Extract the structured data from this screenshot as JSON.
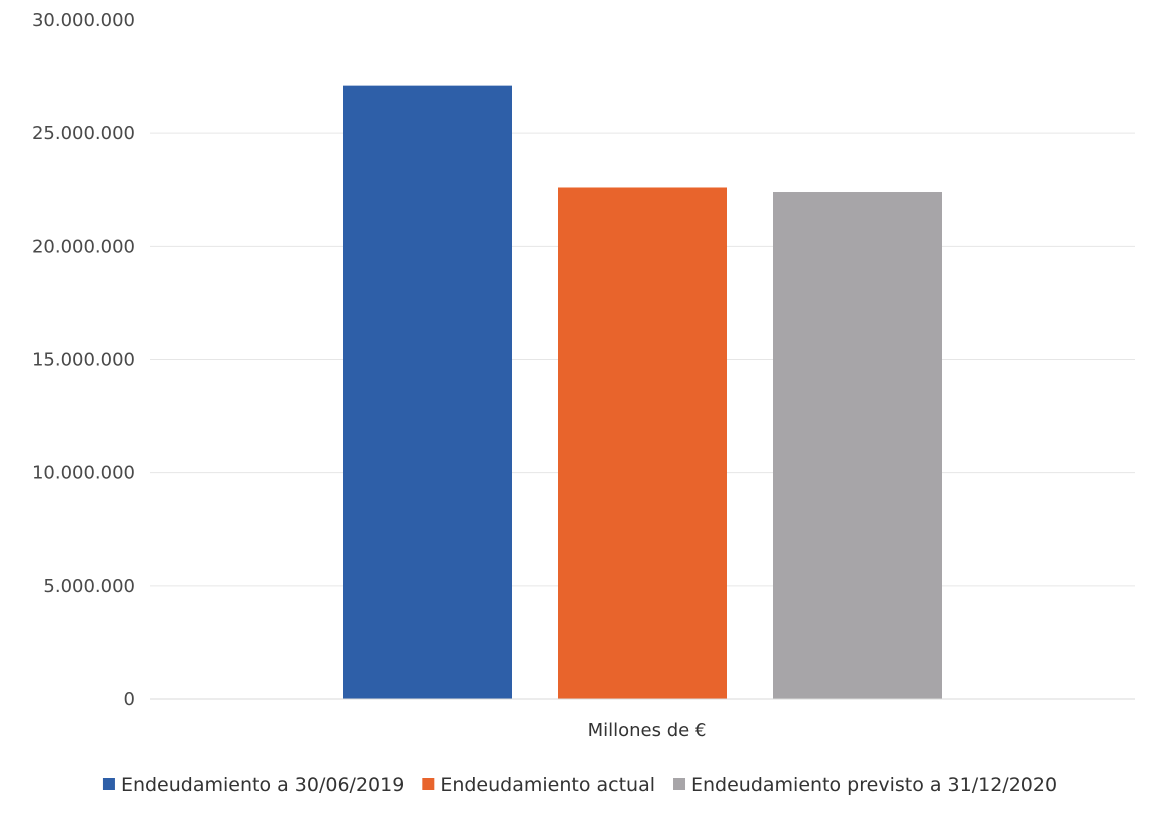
{
  "chart_data": {
    "type": "bar",
    "categories": [
      "Millones de €"
    ],
    "series": [
      {
        "name": "Endeudamiento a 30/06/2019",
        "values": [
          27100000
        ],
        "color": "#2e5fa8"
      },
      {
        "name": "Endeudamiento actual",
        "values": [
          22600000
        ],
        "color": "#e8642c"
      },
      {
        "name": "Endeudamiento previsto a 31/12/2020",
        "values": [
          22400000
        ],
        "color": "#a7a5a8"
      }
    ],
    "yticks": [
      "0",
      "5.000.000",
      "10.000.000",
      "15.000.000",
      "20.000.000",
      "25.000.000",
      "30.000.000"
    ],
    "ylim": [
      0,
      30000000
    ],
    "grid": true,
    "legend_position": "bottom"
  }
}
